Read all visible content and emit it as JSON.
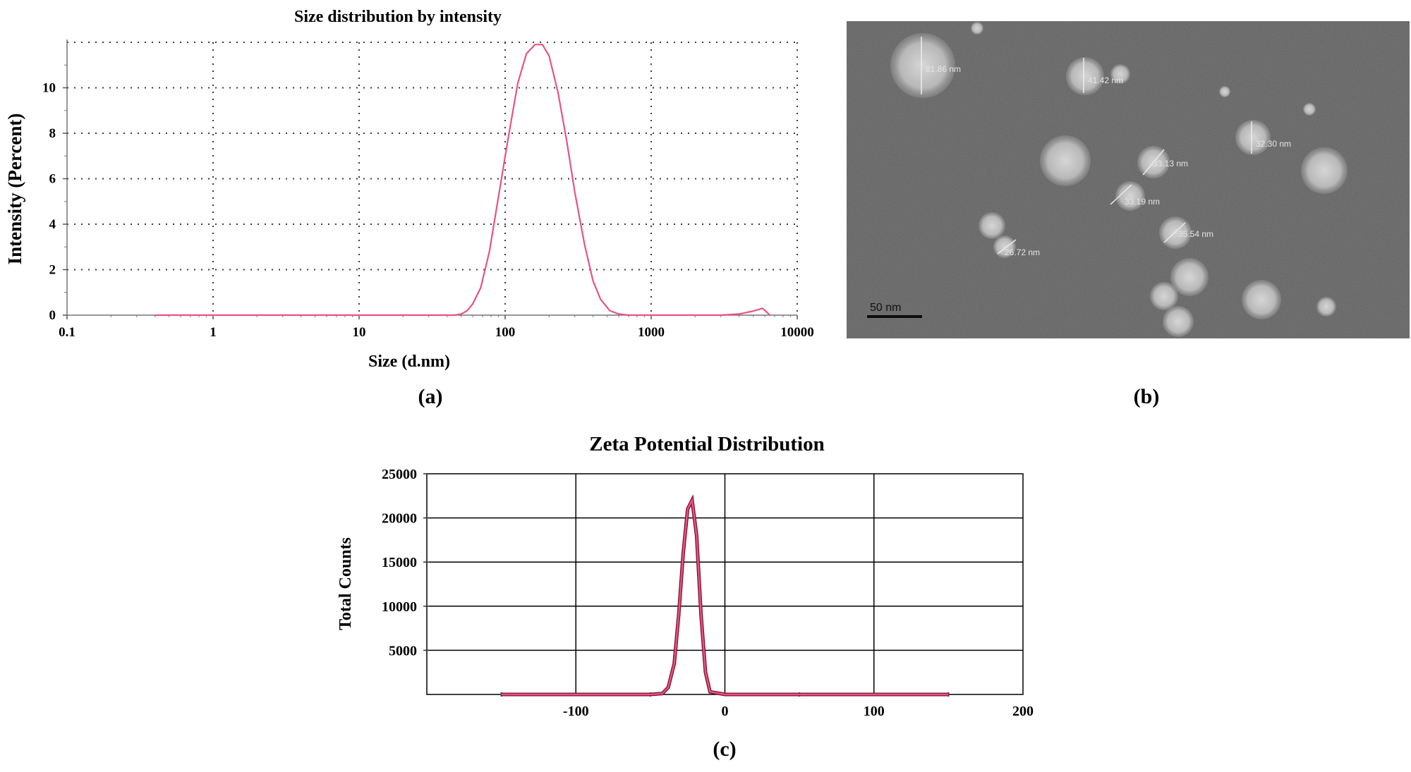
{
  "panel_labels": {
    "a": "(a)",
    "b": "(b)",
    "c": "(c)"
  },
  "micrograph": {
    "scale_bar_label": "50 nm",
    "particle_labels": [
      "81.86 nm",
      "41.42 nm",
      "33.13 nm",
      "33.19 nm",
      "35.54 nm",
      "26.72 nm",
      "32.30 nm"
    ],
    "colors": {
      "background": "#6b6b6b",
      "particle": "#c8c8c8",
      "text": "#e6e6e6"
    }
  },
  "chart_data": [
    {
      "type": "line",
      "title": "Size distribution by intensity",
      "xlabel": "Size (d.nm)",
      "ylabel": "Intensity (Percent)",
      "xscale": "log",
      "xlim": [
        0.1,
        10000
      ],
      "ylim": [
        0,
        12
      ],
      "xticks": [
        0.1,
        1,
        10,
        100,
        1000,
        10000
      ],
      "xtick_labels": [
        "0.1",
        "1",
        "10",
        "100",
        "1000",
        "10000"
      ],
      "yticks": [
        0,
        2,
        4,
        6,
        8,
        10
      ],
      "ytick_labels": [
        "0",
        "2",
        "4",
        "6",
        "8",
        "10"
      ],
      "grid": "dotted",
      "line_color": "#e75480",
      "series": [
        {
          "x": [
            0.4,
            1,
            10,
            45,
            50,
            55,
            60,
            68,
            78,
            90,
            105,
            122,
            140,
            160,
            180,
            200,
            230,
            265,
            300,
            350,
            400,
            450,
            520,
            600,
            700,
            1000,
            2000,
            3000,
            4000,
            5000,
            5800,
            6500
          ],
          "y": [
            0,
            0,
            0,
            0,
            0.05,
            0.2,
            0.5,
            1.2,
            2.8,
            5.2,
            7.8,
            10.2,
            11.5,
            11.9,
            11.9,
            11.4,
            9.8,
            7.6,
            5.4,
            3.1,
            1.5,
            0.7,
            0.2,
            0.05,
            0,
            0,
            0,
            0,
            0.05,
            0.18,
            0.3,
            0
          ]
        }
      ]
    },
    {
      "type": "line",
      "title": "Zeta Potential Distribution",
      "xlabel": "",
      "ylabel": "Total Counts",
      "xlim": [
        -200,
        200
      ],
      "ylim": [
        0,
        25000
      ],
      "xticks": [
        -100,
        0,
        100,
        200
      ],
      "xtick_labels": [
        "-100",
        "0",
        "100",
        "200"
      ],
      "yticks": [
        5000,
        10000,
        15000,
        20000,
        25000
      ],
      "ytick_labels": [
        "5000",
        "10000",
        "15000",
        "20000",
        "25000"
      ],
      "grid": "solid",
      "line_color": "#e75480",
      "series": [
        {
          "x": [
            -150,
            -50,
            -42,
            -38,
            -34,
            -31,
            -28,
            -25,
            -22,
            -19,
            -16,
            -13,
            -10,
            0,
            150
          ],
          "y": [
            0,
            0,
            100,
            800,
            3500,
            9000,
            16000,
            21000,
            22000,
            18000,
            9000,
            2500,
            300,
            0,
            0
          ]
        }
      ]
    }
  ]
}
